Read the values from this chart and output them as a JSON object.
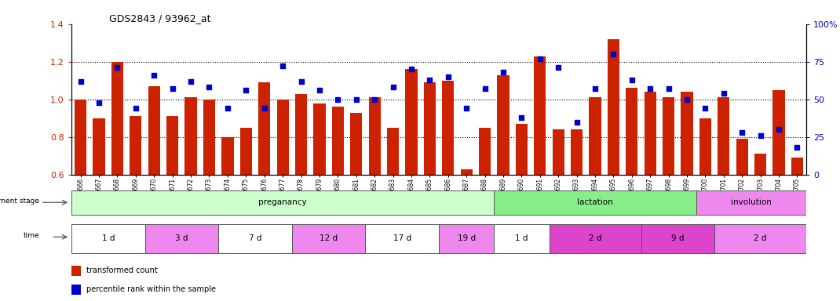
{
  "title": "GDS2843 / 93962_at",
  "samples": [
    "GSM202666",
    "GSM202667",
    "GSM202668",
    "GSM202669",
    "GSM202670",
    "GSM202671",
    "GSM202672",
    "GSM202673",
    "GSM202674",
    "GSM202675",
    "GSM202676",
    "GSM202677",
    "GSM202678",
    "GSM202679",
    "GSM202680",
    "GSM202681",
    "GSM202682",
    "GSM202683",
    "GSM202684",
    "GSM202685",
    "GSM202686",
    "GSM202687",
    "GSM202688",
    "GSM202689",
    "GSM202690",
    "GSM202691",
    "GSM202692",
    "GSM202693",
    "GSM202694",
    "GSM202695",
    "GSM202696",
    "GSM202697",
    "GSM202698",
    "GSM202699",
    "GSM202700",
    "GSM202701",
    "GSM202702",
    "GSM202703",
    "GSM202704",
    "GSM202705"
  ],
  "bar_values": [
    1.0,
    0.9,
    1.2,
    0.91,
    1.07,
    0.91,
    1.01,
    1.0,
    0.8,
    0.85,
    1.09,
    1.0,
    1.03,
    0.98,
    0.96,
    0.93,
    1.01,
    0.85,
    1.16,
    1.09,
    1.1,
    0.63,
    0.85,
    1.13,
    0.87,
    1.23,
    0.84,
    0.84,
    1.01,
    1.32,
    1.06,
    1.04,
    1.01,
    1.04,
    0.9,
    1.01,
    0.79,
    0.71,
    1.05,
    0.69
  ],
  "percentile_values": [
    62,
    48,
    71,
    44,
    66,
    57,
    62,
    58,
    44,
    56,
    44,
    72,
    62,
    56,
    50,
    50,
    50,
    58,
    70,
    63,
    65,
    44,
    57,
    68,
    38,
    77,
    71,
    35,
    57,
    80,
    63,
    57,
    57,
    50,
    44,
    54,
    28,
    26,
    30,
    18
  ],
  "bar_color": "#cc2200",
  "percentile_color": "#0000cc",
  "ylim_left": [
    0.6,
    1.4
  ],
  "ylim_right": [
    0,
    100
  ],
  "yticks_left": [
    0.6,
    0.8,
    1.0,
    1.2,
    1.4
  ],
  "yticks_right": [
    0,
    25,
    50,
    75,
    100
  ],
  "grid_lines": [
    0.8,
    1.0,
    1.2
  ],
  "development_stages": [
    {
      "label": "preganancy",
      "start": 0,
      "end": 23,
      "color": "#ccffcc"
    },
    {
      "label": "lactation",
      "start": 23,
      "end": 34,
      "color": "#88ee88"
    },
    {
      "label": "involution",
      "start": 34,
      "end": 40,
      "color": "#ee88ee"
    }
  ],
  "time_periods": [
    {
      "label": "1 d",
      "start": 0,
      "end": 4,
      "color": "#ffffff"
    },
    {
      "label": "3 d",
      "start": 4,
      "end": 8,
      "color": "#ee88ee"
    },
    {
      "label": "7 d",
      "start": 8,
      "end": 12,
      "color": "#ffffff"
    },
    {
      "label": "12 d",
      "start": 12,
      "end": 16,
      "color": "#ee88ee"
    },
    {
      "label": "17 d",
      "start": 16,
      "end": 20,
      "color": "#ffffff"
    },
    {
      "label": "19 d",
      "start": 20,
      "end": 23,
      "color": "#ee88ee"
    },
    {
      "label": "1 d",
      "start": 23,
      "end": 26,
      "color": "#ffffff"
    },
    {
      "label": "2 d",
      "start": 26,
      "end": 31,
      "color": "#dd44cc"
    },
    {
      "label": "9 d",
      "start": 31,
      "end": 35,
      "color": "#dd44cc"
    },
    {
      "label": "2 d",
      "start": 35,
      "end": 40,
      "color": "#ee88ee"
    }
  ],
  "legend_items": [
    {
      "label": "transformed count",
      "color": "#cc2200"
    },
    {
      "label": "percentile rank within the sample",
      "color": "#0000cc"
    }
  ],
  "bg_color": "#f0f0f0"
}
